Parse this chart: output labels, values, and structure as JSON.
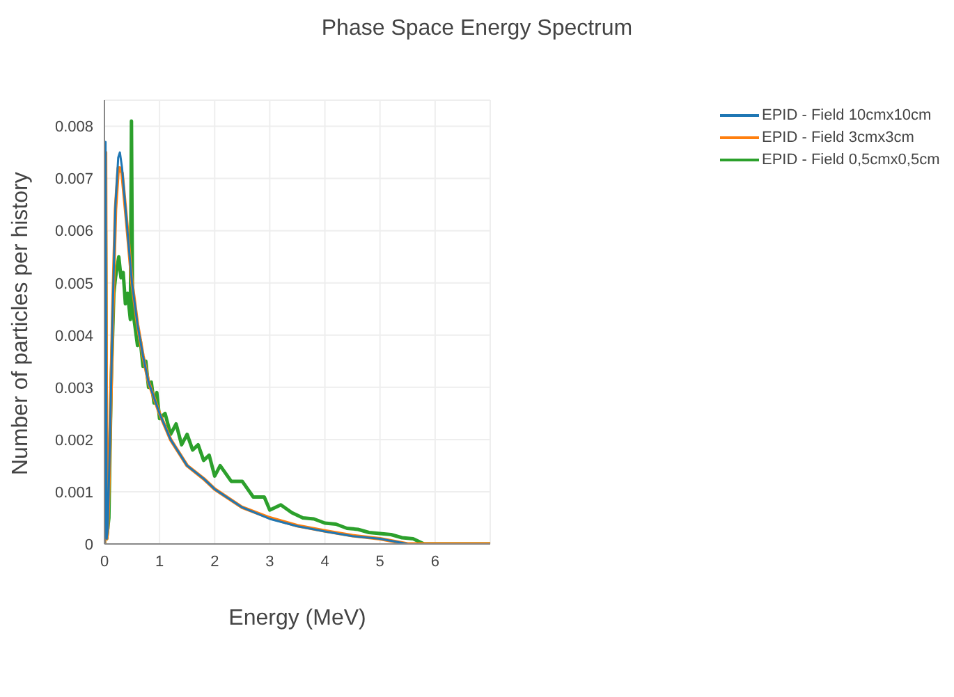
{
  "chart_data": {
    "type": "line",
    "title": "Phase Space Energy Spectrum",
    "xlabel": "Energy (MeV)",
    "ylabel": "Number of particles per history",
    "xlim": [
      0,
      7
    ],
    "xticks": [
      0,
      1,
      2,
      3,
      4,
      5,
      6
    ],
    "ylim": [
      0,
      0.0085
    ],
    "yticks": [
      0,
      0.001,
      0.002,
      0.003,
      0.004,
      0.005,
      0.006,
      0.007,
      0.008
    ],
    "grid": true,
    "legend": "top right",
    "marker": "none",
    "line_style": "solid",
    "x": [
      0,
      0.02,
      0.04,
      0.06,
      0.1,
      0.15,
      0.2,
      0.25,
      0.28,
      0.32,
      0.4,
      0.5,
      0.6,
      0.7,
      0.8,
      1,
      1.2,
      1.5,
      1.8,
      2,
      2.5,
      3,
      3.5,
      4,
      4.5,
      5,
      5.5,
      5.8,
      6,
      7
    ],
    "series": [
      {
        "name": "EPID - Field 10cmx10cm",
        "color": "#1f77b4",
        "values": [
          0,
          0.0077,
          0.0001,
          0.0003,
          0.002,
          0.0045,
          0.0065,
          0.0074,
          0.0075,
          0.0072,
          0.0062,
          0.005,
          0.0042,
          0.0036,
          0.0031,
          0.0025,
          0.002,
          0.0015,
          0.00125,
          0.00105,
          0.0007,
          0.00048,
          0.00034,
          0.00024,
          0.00015,
          0.0001,
          0,
          null,
          null,
          null
        ]
      },
      {
        "name": "EPID - Field 3cmx3cm",
        "color": "#ff7f0e",
        "values": [
          0,
          0.0075,
          0.0001,
          0.0003,
          0.002,
          0.0044,
          0.0064,
          0.0072,
          0.0072,
          0.0071,
          0.0062,
          0.005,
          0.0042,
          0.0036,
          0.0031,
          0.0025,
          0.002,
          0.0015,
          0.00125,
          0.00105,
          0.0007,
          0.0005,
          0.00035,
          0.00025,
          0.00016,
          0.0001,
          0,
          0,
          0,
          0
        ]
      },
      {
        "name": "EPID - Field 0,5cmx0,5cm",
        "color": "#2ca02c",
        "x": [
          0,
          0.02,
          0.04,
          0.08,
          0.12,
          0.17,
          0.2,
          0.23,
          0.26,
          0.3,
          0.34,
          0.38,
          0.42,
          0.47,
          0.49,
          0.51,
          0.55,
          0.6,
          0.65,
          0.7,
          0.75,
          0.8,
          0.85,
          0.9,
          0.95,
          1,
          1.1,
          1.2,
          1.3,
          1.4,
          1.5,
          1.6,
          1.7,
          1.8,
          1.9,
          2,
          2.1,
          2.3,
          2.5,
          2.7,
          2.9,
          3,
          3.2,
          3.4,
          3.6,
          3.8,
          4,
          4.2,
          4.4,
          4.6,
          4.8,
          5,
          5.2,
          5.4,
          5.6,
          5.8,
          6,
          7
        ],
        "values": [
          0,
          0.006,
          0.0001,
          0.0005,
          0.003,
          0.0048,
          0.0051,
          0.0053,
          0.0055,
          0.0051,
          0.0052,
          0.0046,
          0.0048,
          0.0043,
          0.0081,
          0.0045,
          0.0042,
          0.0038,
          0.0039,
          0.0034,
          0.0035,
          0.003,
          0.0031,
          0.0027,
          0.0029,
          0.0024,
          0.0025,
          0.0021,
          0.0023,
          0.0019,
          0.0021,
          0.0018,
          0.0019,
          0.0016,
          0.0017,
          0.0013,
          0.0015,
          0.0012,
          0.0012,
          0.0009,
          0.0009,
          0.00065,
          0.00075,
          0.0006,
          0.0005,
          0.00048,
          0.0004,
          0.00038,
          0.0003,
          0.00028,
          0.00022,
          0.0002,
          0.00018,
          0.00012,
          0.0001,
          0,
          0,
          0
        ]
      }
    ]
  }
}
